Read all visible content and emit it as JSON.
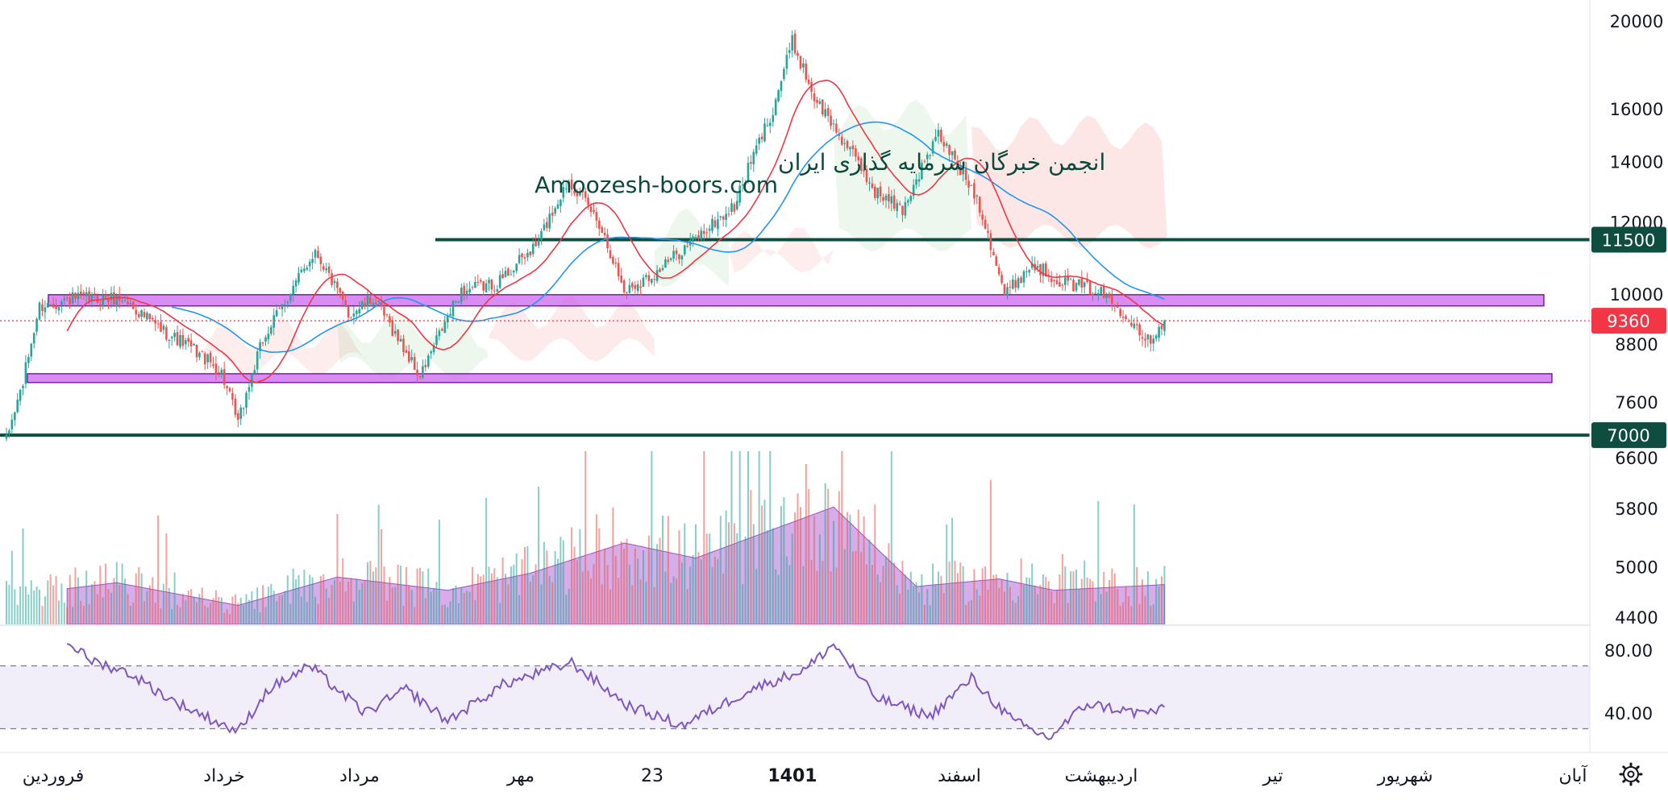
{
  "chart_data": {
    "type": "candlestick",
    "price_axis": {
      "scale": "log",
      "ticks": [
        "20000",
        "16000",
        "14000",
        "12000",
        "10000",
        "8800",
        "7600",
        "6600",
        "5800",
        "5000",
        "4400"
      ],
      "tick_values": [
        20000,
        16000,
        14000,
        12000,
        10000,
        8800,
        7600,
        6600,
        5800,
        5000,
        4400
      ]
    },
    "time_axis": {
      "labels": [
        "فروردین",
        "خرداد",
        "مرداد",
        "مهر",
        "23",
        "1401",
        "اسفند",
        "اردیبهشت",
        "تیر",
        "شهریور",
        "آبان"
      ],
      "bold": [
        "1401"
      ]
    },
    "watermark": {
      "line1": "انجمن خبرگان سرمایه گذاری ایران",
      "line2": "Amoozesh-boors.com"
    },
    "horizontal_levels": [
      {
        "price": 11500,
        "label": "11500",
        "color": "#0e4d3f"
      },
      {
        "price": 7000,
        "label": "7000",
        "color": "#0e4d3f"
      }
    ],
    "current_price": {
      "value": 9360,
      "label": "9360",
      "color": "#f23645"
    },
    "zones": [
      {
        "from": 9720,
        "to": 10000,
        "color": "#cc66ee"
      },
      {
        "from": 8000,
        "to": 8180,
        "color": "#cc66ee"
      }
    ],
    "anchors": [
      {
        "i": 0,
        "close": 6900
      },
      {
        "i": 6,
        "close": 8000
      },
      {
        "i": 12,
        "close": 9700
      },
      {
        "i": 24,
        "close": 9900
      },
      {
        "i": 34,
        "close": 9900
      },
      {
        "i": 42,
        "close": 9900
      },
      {
        "i": 55,
        "close": 9200
      },
      {
        "i": 68,
        "close": 8700
      },
      {
        "i": 78,
        "close": 8200
      },
      {
        "i": 84,
        "close": 7200
      },
      {
        "i": 93,
        "close": 8900
      },
      {
        "i": 105,
        "close": 10300
      },
      {
        "i": 112,
        "close": 11200
      },
      {
        "i": 124,
        "close": 9500
      },
      {
        "i": 133,
        "close": 9900
      },
      {
        "i": 150,
        "close": 8100
      },
      {
        "i": 165,
        "close": 10100
      },
      {
        "i": 178,
        "close": 10300
      },
      {
        "i": 192,
        "close": 11300
      },
      {
        "i": 204,
        "close": 13400
      },
      {
        "i": 215,
        "close": 12000
      },
      {
        "i": 224,
        "close": 10100
      },
      {
        "i": 236,
        "close": 10600
      },
      {
        "i": 248,
        "close": 11400
      },
      {
        "i": 264,
        "close": 12500
      },
      {
        "i": 278,
        "close": 16000
      },
      {
        "i": 285,
        "close": 19000
      },
      {
        "i": 293,
        "close": 16500
      },
      {
        "i": 302,
        "close": 15000
      },
      {
        "i": 315,
        "close": 13000
      },
      {
        "i": 325,
        "close": 12400
      },
      {
        "i": 338,
        "close": 15000
      },
      {
        "i": 352,
        "close": 12800
      },
      {
        "i": 362,
        "close": 10000
      },
      {
        "i": 372,
        "close": 10800
      },
      {
        "i": 384,
        "close": 10300
      },
      {
        "i": 396,
        "close": 10100
      },
      {
        "i": 408,
        "close": 9400
      },
      {
        "i": 414,
        "close": 8900
      },
      {
        "i": 420,
        "close": 9360
      }
    ],
    "volume_profile": [
      {
        "i": 0,
        "v": 0.15
      },
      {
        "i": 40,
        "v": 0.22
      },
      {
        "i": 84,
        "v": 0.1
      },
      {
        "i": 120,
        "v": 0.25
      },
      {
        "i": 160,
        "v": 0.18
      },
      {
        "i": 190,
        "v": 0.27
      },
      {
        "i": 224,
        "v": 0.43
      },
      {
        "i": 250,
        "v": 0.35
      },
      {
        "i": 300,
        "v": 0.62
      },
      {
        "i": 330,
        "v": 0.2
      },
      {
        "i": 360,
        "v": 0.24
      },
      {
        "i": 380,
        "v": 0.18
      },
      {
        "i": 420,
        "v": 0.21
      }
    ],
    "rsi": {
      "upper": 70,
      "lower": 30,
      "ticks": [
        "80.00",
        "40.00"
      ],
      "tick_values": [
        80,
        40
      ],
      "anchors": [
        {
          "i": 22,
          "v": 86
        },
        {
          "i": 30,
          "v": 74
        },
        {
          "i": 45,
          "v": 65
        },
        {
          "i": 60,
          "v": 48
        },
        {
          "i": 84,
          "v": 28
        },
        {
          "i": 95,
          "v": 55
        },
        {
          "i": 110,
          "v": 70
        },
        {
          "i": 130,
          "v": 40
        },
        {
          "i": 145,
          "v": 55
        },
        {
          "i": 160,
          "v": 35
        },
        {
          "i": 180,
          "v": 58
        },
        {
          "i": 205,
          "v": 72
        },
        {
          "i": 225,
          "v": 45
        },
        {
          "i": 245,
          "v": 32
        },
        {
          "i": 270,
          "v": 55
        },
        {
          "i": 290,
          "v": 68
        },
        {
          "i": 300,
          "v": 84
        },
        {
          "i": 315,
          "v": 50
        },
        {
          "i": 335,
          "v": 38
        },
        {
          "i": 350,
          "v": 62
        },
        {
          "i": 365,
          "v": 35
        },
        {
          "i": 378,
          "v": 24
        },
        {
          "i": 392,
          "v": 46
        },
        {
          "i": 410,
          "v": 40
        },
        {
          "i": 420,
          "v": 42
        }
      ]
    },
    "colors": {
      "up": "#26a69a",
      "down": "#ef5350",
      "ma_fast": "#f23645",
      "ma_slow": "#2196f3",
      "rsi": "#7e57c2",
      "volume_area": "#b36ad6"
    },
    "grid": false
  },
  "toolbar": {
    "settings_icon": "gear-icon"
  }
}
